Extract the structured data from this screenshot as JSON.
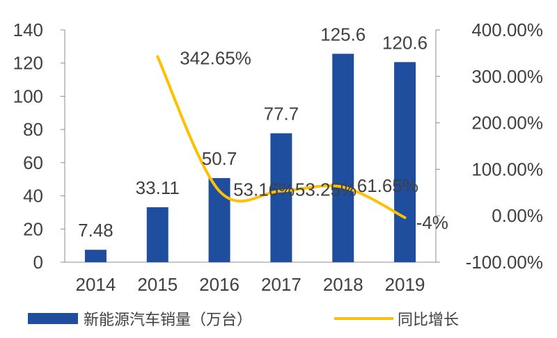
{
  "chart_data": {
    "type": "bar",
    "categories": [
      "2014",
      "2015",
      "2016",
      "2017",
      "2018",
      "2019"
    ],
    "series": [
      {
        "name": "新能源汽车销量（万台）",
        "type": "bar",
        "axis": "left",
        "values": [
          7.48,
          33.11,
          50.7,
          77.7,
          125.6,
          120.6
        ],
        "labels": [
          "7.48",
          "33.11",
          "50.7",
          "77.7",
          "125.6",
          "120.6"
        ],
        "color": "#1f4e9f"
      },
      {
        "name": "同比增长",
        "type": "line",
        "axis": "right",
        "smooth": true,
        "values": [
          null,
          342.65,
          53.16,
          53.25,
          61.65,
          -4
        ],
        "labels": [
          "",
          "342.65%",
          "53.16%",
          "53.25%",
          "61.65%",
          "-4%"
        ],
        "color": "#ffc000"
      }
    ],
    "y_left": {
      "min": 0,
      "max": 140,
      "ticks": [
        "0",
        "20",
        "40",
        "60",
        "80",
        "100",
        "120",
        "140"
      ]
    },
    "y_right": {
      "min": -100,
      "max": 400,
      "ticks": [
        "-100.00%",
        "0.00%",
        "100.00%",
        "200.00%",
        "300.00%",
        "400.00%"
      ]
    },
    "legend_position": "bottom-left",
    "grid": false
  }
}
